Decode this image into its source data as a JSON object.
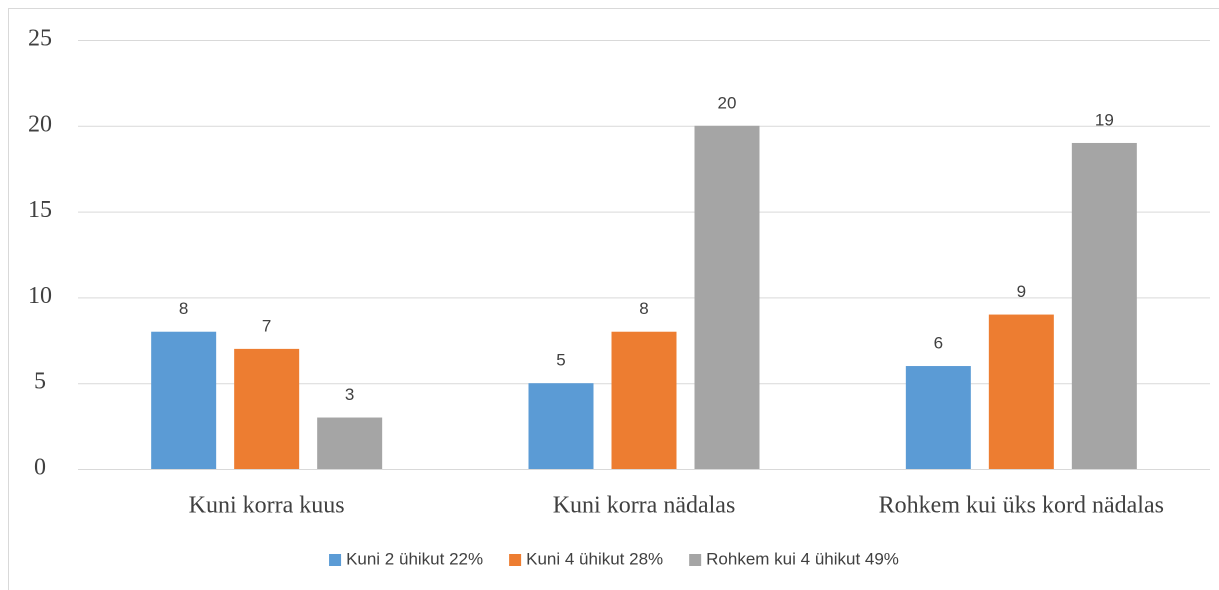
{
  "chart_data": {
    "type": "bar",
    "categories": [
      "Kuni korra kuus",
      "Kuni korra nädalas",
      "Rohkem kui üks kord nädalas"
    ],
    "series": [
      {
        "name": "Kuni 2 ühikut 22%",
        "color": "#5b9bd5",
        "values": [
          8,
          5,
          6
        ]
      },
      {
        "name": "Kuni 4 ühikut 28%",
        "color": "#ed7d31",
        "values": [
          7,
          8,
          9
        ]
      },
      {
        "name": "Rohkem kui 4 ühikut  49%",
        "color": "#a5a5a5",
        "values": [
          3,
          20,
          19
        ]
      }
    ],
    "ylim": [
      0,
      25
    ],
    "yticks": [
      0,
      5,
      10,
      15,
      20,
      25
    ],
    "grid": true,
    "legend": "bottom"
  }
}
